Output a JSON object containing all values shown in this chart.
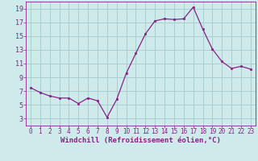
{
  "x": [
    0,
    1,
    2,
    3,
    4,
    5,
    6,
    7,
    8,
    9,
    10,
    11,
    12,
    13,
    14,
    15,
    16,
    17,
    18,
    19,
    20,
    21,
    22,
    23
  ],
  "y": [
    7.5,
    6.8,
    6.3,
    6.0,
    6.0,
    5.2,
    6.0,
    5.6,
    3.2,
    5.8,
    9.6,
    12.5,
    15.3,
    17.2,
    17.5,
    17.4,
    17.5,
    19.2,
    16.0,
    13.1,
    11.3,
    10.3,
    10.6,
    10.2
  ],
  "bg_color": "#ceeaea",
  "grid_color": "#aacfcf",
  "line_color": "#882288",
  "marker_color": "#882288",
  "xlabel": "Windchill (Refroidissement éolien,°C)",
  "xlabel_color": "#882288",
  "tick_color": "#882288",
  "ylim": [
    2,
    20
  ],
  "xlim": [
    -0.5,
    23.5
  ],
  "yticks": [
    3,
    5,
    7,
    9,
    11,
    13,
    15,
    17,
    19
  ],
  "xticks": [
    0,
    1,
    2,
    3,
    4,
    5,
    6,
    7,
    8,
    9,
    10,
    11,
    12,
    13,
    14,
    15,
    16,
    17,
    18,
    19,
    20,
    21,
    22,
    23
  ],
  "ylabel_fontsize": 6.5,
  "tick_fontsize": 5.5,
  "xlabel_fontsize": 6.5,
  "line_width": 0.9,
  "marker_size": 2.0
}
